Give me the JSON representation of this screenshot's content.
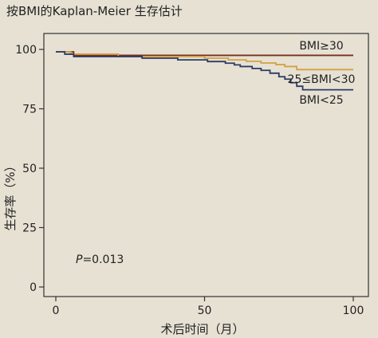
{
  "chart_data": {
    "type": "line",
    "title": "按BMI的Kaplan-Meier 生存估计",
    "xlabel": "术后时间（月）",
    "ylabel": "生存率（%）",
    "xlim": [
      0,
      100
    ],
    "ylim": [
      0,
      100
    ],
    "xticks": [
      0,
      50,
      100
    ],
    "yticks": [
      0,
      25,
      50,
      75,
      100
    ],
    "grid": false,
    "annotation": "P=0.013",
    "series": [
      {
        "name": "BMI≥30",
        "color": "#7a2e1e",
        "points": [
          [
            0,
            99
          ],
          [
            6,
            97.5
          ],
          [
            100,
            97.5
          ]
        ]
      },
      {
        "name": "25≤BMI<30",
        "color": "#d4a145",
        "points": [
          [
            0,
            99
          ],
          [
            5,
            98
          ],
          [
            20,
            98
          ],
          [
            21,
            97
          ],
          [
            49,
            97
          ],
          [
            50,
            96.3
          ],
          [
            57,
            96.3
          ],
          [
            58,
            95.6
          ],
          [
            63,
            95.6
          ],
          [
            64,
            95
          ],
          [
            68,
            95
          ],
          [
            69,
            94.3
          ],
          [
            73,
            94.3
          ],
          [
            74,
            93.6
          ],
          [
            76,
            93.6
          ],
          [
            77,
            92.8
          ],
          [
            80,
            92.8
          ],
          [
            81,
            91.5
          ],
          [
            100,
            91.5
          ]
        ]
      },
      {
        "name": "BMI<25",
        "color": "#2d3a66",
        "points": [
          [
            0,
            99
          ],
          [
            3,
            98
          ],
          [
            6,
            97
          ],
          [
            28,
            97
          ],
          [
            29,
            96.3
          ],
          [
            40,
            96.3
          ],
          [
            41,
            95.6
          ],
          [
            50,
            95.6
          ],
          [
            51,
            94.9
          ],
          [
            56,
            94.9
          ],
          [
            57,
            94.2
          ],
          [
            59,
            94.2
          ],
          [
            60,
            93.5
          ],
          [
            61,
            93.5
          ],
          [
            62,
            92.8
          ],
          [
            65,
            92.8
          ],
          [
            66,
            92
          ],
          [
            68,
            92
          ],
          [
            69,
            91.2
          ],
          [
            71,
            91.2
          ],
          [
            72,
            90
          ],
          [
            74,
            90
          ],
          [
            75,
            88.5
          ],
          [
            76,
            88.5
          ],
          [
            77,
            87.5
          ],
          [
            78,
            87.5
          ],
          [
            79,
            86
          ],
          [
            80,
            86
          ],
          [
            81,
            84.5
          ],
          [
            82,
            84.5
          ],
          [
            83,
            83
          ],
          [
            100,
            83
          ]
        ]
      }
    ]
  }
}
